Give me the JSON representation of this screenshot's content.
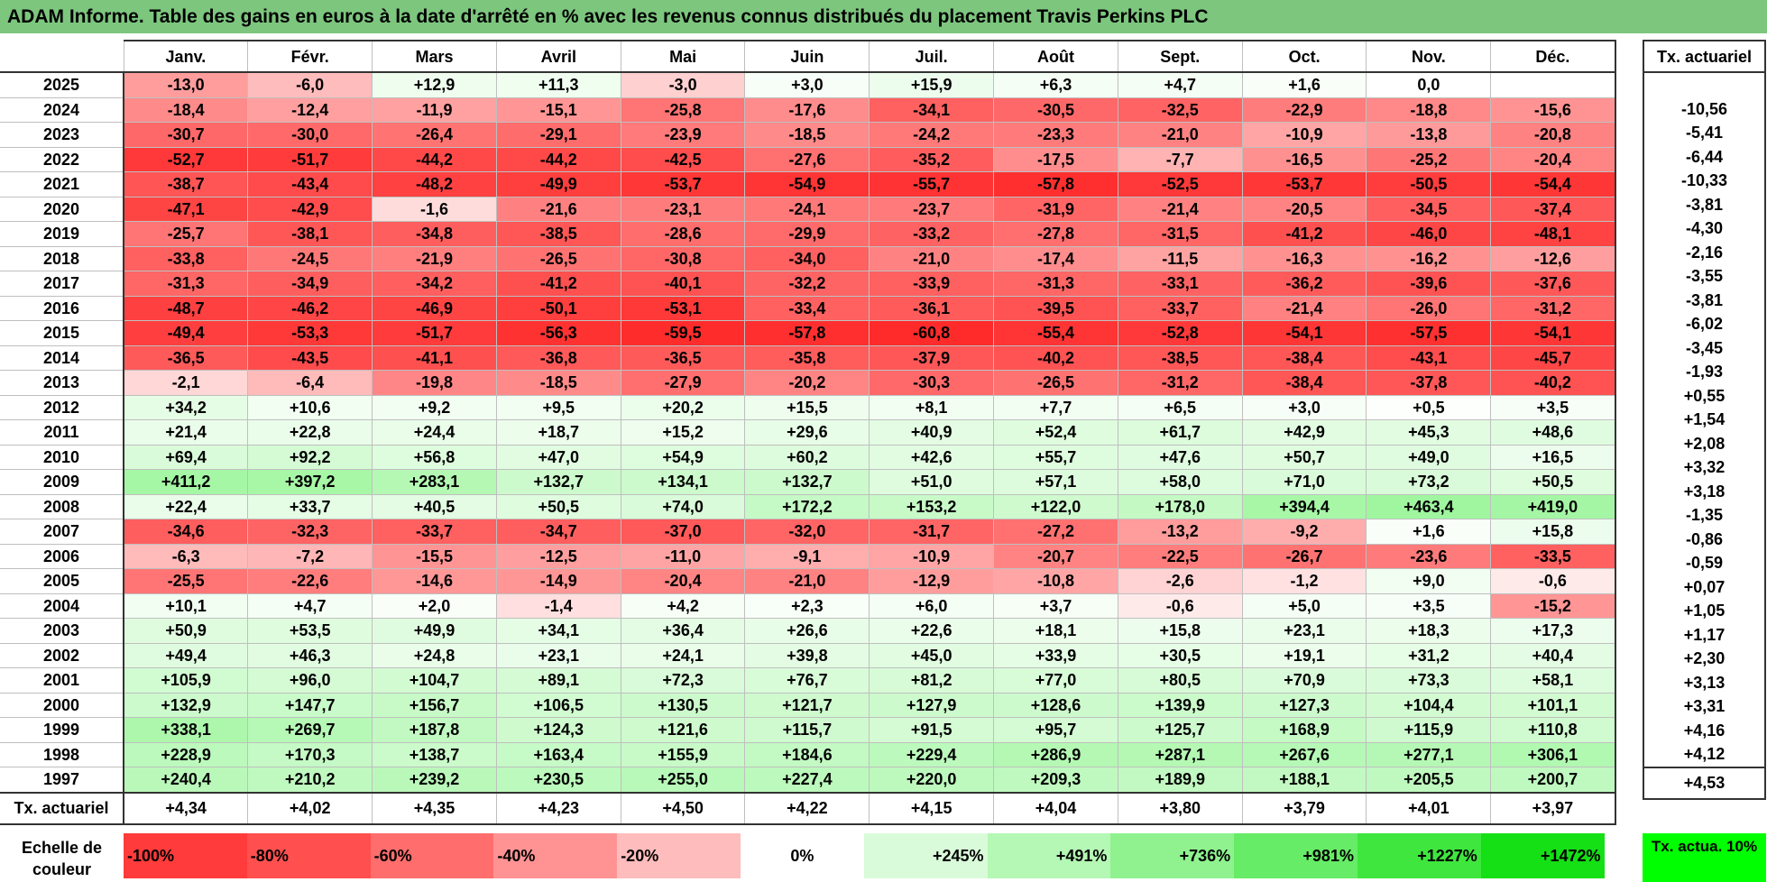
{
  "title": "ADAM Informe. Table des gains en euros à la date d'arrêté en % avec les revenus connus distribués du placement Travis Perkins PLC",
  "months": [
    "Janv.",
    "Févr.",
    "Mars",
    "Avril",
    "Mai",
    "Juin",
    "Juil.",
    "Août",
    "Sept.",
    "Oct.",
    "Nov.",
    "Déc."
  ],
  "side_header": "Tx. actuariel",
  "rows": [
    {
      "year": "2025",
      "values": [
        "-13,0",
        "-6,0",
        "+12,9",
        "+11,3",
        "-3,0",
        "+3,0",
        "+15,9",
        "+6,3",
        "+4,7",
        "+1,6",
        "0,0",
        ""
      ],
      "rate": ""
    },
    {
      "year": "2024",
      "values": [
        "-18,4",
        "-12,4",
        "-11,9",
        "-15,1",
        "-25,8",
        "-17,6",
        "-34,1",
        "-30,5",
        "-32,5",
        "-22,9",
        "-18,8",
        "-15,6"
      ],
      "rate": "-10,56"
    },
    {
      "year": "2023",
      "values": [
        "-30,7",
        "-30,0",
        "-26,4",
        "-29,1",
        "-23,9",
        "-18,5",
        "-24,2",
        "-23,3",
        "-21,0",
        "-10,9",
        "-13,8",
        "-20,8"
      ],
      "rate": "-5,41"
    },
    {
      "year": "2022",
      "values": [
        "-52,7",
        "-51,7",
        "-44,2",
        "-44,2",
        "-42,5",
        "-27,6",
        "-35,2",
        "-17,5",
        "-7,7",
        "-16,5",
        "-25,2",
        "-20,4"
      ],
      "rate": "-6,44"
    },
    {
      "year": "2021",
      "values": [
        "-38,7",
        "-43,4",
        "-48,2",
        "-49,9",
        "-53,7",
        "-54,9",
        "-55,7",
        "-57,8",
        "-52,5",
        "-53,7",
        "-50,5",
        "-54,4"
      ],
      "rate": "-10,33"
    },
    {
      "year": "2020",
      "values": [
        "-47,1",
        "-42,9",
        "-1,6",
        "-21,6",
        "-23,1",
        "-24,1",
        "-23,7",
        "-31,9",
        "-21,4",
        "-20,5",
        "-34,5",
        "-37,4"
      ],
      "rate": "-3,81"
    },
    {
      "year": "2019",
      "values": [
        "-25,7",
        "-38,1",
        "-34,8",
        "-38,5",
        "-28,6",
        "-29,9",
        "-33,2",
        "-27,8",
        "-31,5",
        "-41,2",
        "-46,0",
        "-48,1"
      ],
      "rate": "-4,30"
    },
    {
      "year": "2018",
      "values": [
        "-33,8",
        "-24,5",
        "-21,9",
        "-26,5",
        "-30,8",
        "-34,0",
        "-21,0",
        "-17,4",
        "-11,5",
        "-16,3",
        "-16,2",
        "-12,6"
      ],
      "rate": "-2,16"
    },
    {
      "year": "2017",
      "values": [
        "-31,3",
        "-34,9",
        "-34,2",
        "-41,2",
        "-40,1",
        "-32,2",
        "-33,9",
        "-31,3",
        "-33,1",
        "-36,2",
        "-39,6",
        "-37,6"
      ],
      "rate": "-3,55"
    },
    {
      "year": "2016",
      "values": [
        "-48,7",
        "-46,2",
        "-46,9",
        "-50,1",
        "-53,1",
        "-33,4",
        "-36,1",
        "-39,5",
        "-33,7",
        "-21,4",
        "-26,0",
        "-31,2"
      ],
      "rate": "-3,81"
    },
    {
      "year": "2015",
      "values": [
        "-49,4",
        "-53,3",
        "-51,7",
        "-56,3",
        "-59,5",
        "-57,8",
        "-60,8",
        "-55,4",
        "-52,8",
        "-54,1",
        "-57,5",
        "-54,1"
      ],
      "rate": "-6,02"
    },
    {
      "year": "2014",
      "values": [
        "-36,5",
        "-43,5",
        "-41,1",
        "-36,8",
        "-36,5",
        "-35,8",
        "-37,9",
        "-40,2",
        "-38,5",
        "-38,4",
        "-43,1",
        "-45,7"
      ],
      "rate": "-3,45"
    },
    {
      "year": "2013",
      "values": [
        "-2,1",
        "-6,4",
        "-19,8",
        "-18,5",
        "-27,9",
        "-20,2",
        "-30,3",
        "-26,5",
        "-31,2",
        "-38,4",
        "-37,8",
        "-40,2"
      ],
      "rate": "-1,93"
    },
    {
      "year": "2012",
      "values": [
        "+34,2",
        "+10,6",
        "+9,2",
        "+9,5",
        "+20,2",
        "+15,5",
        "+8,1",
        "+7,7",
        "+6,5",
        "+3,0",
        "+0,5",
        "+3,5"
      ],
      "rate": "+0,55"
    },
    {
      "year": "2011",
      "values": [
        "+21,4",
        "+22,8",
        "+24,4",
        "+18,7",
        "+15,2",
        "+29,6",
        "+40,9",
        "+52,4",
        "+61,7",
        "+42,9",
        "+45,3",
        "+48,6"
      ],
      "rate": "+1,54"
    },
    {
      "year": "2010",
      "values": [
        "+69,4",
        "+92,2",
        "+56,8",
        "+47,0",
        "+54,9",
        "+60,2",
        "+42,6",
        "+55,7",
        "+47,6",
        "+50,7",
        "+49,0",
        "+16,5"
      ],
      "rate": "+2,08"
    },
    {
      "year": "2009",
      "values": [
        "+411,2",
        "+397,2",
        "+283,1",
        "+132,7",
        "+134,1",
        "+132,7",
        "+51,0",
        "+57,1",
        "+58,0",
        "+71,0",
        "+73,2",
        "+50,5"
      ],
      "rate": "+3,32"
    },
    {
      "year": "2008",
      "values": [
        "+22,4",
        "+33,7",
        "+40,5",
        "+50,5",
        "+74,0",
        "+172,2",
        "+153,2",
        "+122,0",
        "+178,0",
        "+394,4",
        "+463,4",
        "+419,0"
      ],
      "rate": "+3,18"
    },
    {
      "year": "2007",
      "values": [
        "-34,6",
        "-32,3",
        "-33,7",
        "-34,7",
        "-37,0",
        "-32,0",
        "-31,7",
        "-27,2",
        "-13,2",
        "-9,2",
        "+1,6",
        "+15,8"
      ],
      "rate": "-1,35"
    },
    {
      "year": "2006",
      "values": [
        "-6,3",
        "-7,2",
        "-15,5",
        "-12,5",
        "-11,0",
        "-9,1",
        "-10,9",
        "-20,7",
        "-22,5",
        "-26,7",
        "-23,6",
        "-33,5"
      ],
      "rate": "-0,86"
    },
    {
      "year": "2005",
      "values": [
        "-25,5",
        "-22,6",
        "-14,6",
        "-14,9",
        "-20,4",
        "-21,0",
        "-12,9",
        "-10,8",
        "-2,6",
        "-1,2",
        "+9,0",
        "-0,6"
      ],
      "rate": "-0,59"
    },
    {
      "year": "2004",
      "values": [
        "+10,1",
        "+4,7",
        "+2,0",
        "-1,4",
        "+4,2",
        "+2,3",
        "+6,0",
        "+3,7",
        "-0,6",
        "+5,0",
        "+3,5",
        "-15,2"
      ],
      "rate": "+0,07"
    },
    {
      "year": "2003",
      "values": [
        "+50,9",
        "+53,5",
        "+49,9",
        "+34,1",
        "+36,4",
        "+26,6",
        "+22,6",
        "+18,1",
        "+15,8",
        "+23,1",
        "+18,3",
        "+17,3"
      ],
      "rate": "+1,05"
    },
    {
      "year": "2002",
      "values": [
        "+49,4",
        "+46,3",
        "+24,8",
        "+23,1",
        "+24,1",
        "+39,8",
        "+45,0",
        "+33,9",
        "+30,5",
        "+19,1",
        "+31,2",
        "+40,4"
      ],
      "rate": "+1,17"
    },
    {
      "year": "2001",
      "values": [
        "+105,9",
        "+96,0",
        "+104,7",
        "+89,1",
        "+72,3",
        "+76,7",
        "+81,2",
        "+77,0",
        "+80,5",
        "+70,9",
        "+73,3",
        "+58,1"
      ],
      "rate": "+2,30"
    },
    {
      "year": "2000",
      "values": [
        "+132,9",
        "+147,7",
        "+156,7",
        "+106,5",
        "+130,5",
        "+121,7",
        "+127,9",
        "+128,6",
        "+139,9",
        "+127,3",
        "+104,4",
        "+101,1"
      ],
      "rate": "+3,13"
    },
    {
      "year": "1999",
      "values": [
        "+338,1",
        "+269,7",
        "+187,8",
        "+124,3",
        "+121,6",
        "+115,7",
        "+91,5",
        "+95,7",
        "+125,7",
        "+168,9",
        "+115,9",
        "+110,8"
      ],
      "rate": "+3,31"
    },
    {
      "year": "1998",
      "values": [
        "+228,9",
        "+170,3",
        "+138,7",
        "+163,4",
        "+155,9",
        "+184,6",
        "+229,4",
        "+286,9",
        "+287,1",
        "+267,6",
        "+277,1",
        "+306,1"
      ],
      "rate": "+4,16"
    },
    {
      "year": "1997",
      "values": [
        "+240,4",
        "+210,2",
        "+239,2",
        "+230,5",
        "+255,0",
        "+227,4",
        "+220,0",
        "+209,3",
        "+189,9",
        "+188,1",
        "+205,5",
        "+200,7"
      ],
      "rate": "+4,12"
    }
  ],
  "total": {
    "label": "Tx. actuariel",
    "values": [
      "+4,34",
      "+4,02",
      "+4,35",
      "+4,23",
      "+4,50",
      "+4,22",
      "+4,15",
      "+4,04",
      "+3,80",
      "+3,79",
      "+4,01",
      "+3,97"
    ],
    "rate": "+4,53"
  },
  "scale": {
    "label": "Echelle de couleur",
    "items": [
      {
        "label": "-100%",
        "color": "#ff3b3b",
        "kind": "neg"
      },
      {
        "label": "-80%",
        "color": "#ff4f4f",
        "kind": "neg"
      },
      {
        "label": "-60%",
        "color": "#ff6d6d",
        "kind": "neg"
      },
      {
        "label": "-40%",
        "color": "#ff9393",
        "kind": "neg"
      },
      {
        "label": "-20%",
        "color": "#ffbcbc",
        "kind": "neg"
      },
      {
        "label": "0%",
        "color": "#ffffff",
        "kind": "zero"
      },
      {
        "label": "+245%",
        "color": "#d9fbd9",
        "kind": "pos"
      },
      {
        "label": "+491%",
        "color": "#b5f7b5",
        "kind": "pos"
      },
      {
        "label": "+736%",
        "color": "#8ff28f",
        "kind": "pos"
      },
      {
        "label": "+981%",
        "color": "#66ec66",
        "kind": "pos"
      },
      {
        "label": "+1227%",
        "color": "#3ee63e",
        "kind": "pos"
      },
      {
        "label": "+1472%",
        "color": "#15df15",
        "kind": "pos"
      }
    ],
    "side_label": "Tx. actua. 10%",
    "side_color": "#00ff00"
  }
}
